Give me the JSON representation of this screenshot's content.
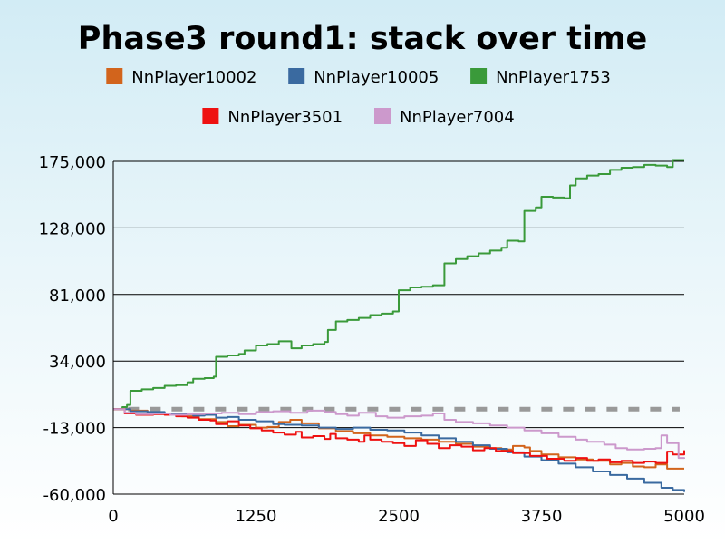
{
  "chart_data": {
    "type": "line",
    "title": "Phase3 round1: stack over time",
    "xlabel": "",
    "ylabel": "",
    "xlim": [
      0,
      5000
    ],
    "ylim": [
      -60000,
      175000
    ],
    "x_ticks": [
      "0",
      "1250",
      "2500",
      "3750",
      "5000"
    ],
    "y_ticks": [
      "-60,000",
      "-13,000",
      "34,000",
      "81,000",
      "128,000",
      "175,000"
    ],
    "grid": "horizontal",
    "legend_position": "top",
    "reference_line": {
      "y": 0,
      "style": "dashed",
      "color": "#999999"
    },
    "series": [
      {
        "name": "NnPlayer10002",
        "color": "#d2641c",
        "points": [
          [
            0,
            0
          ],
          [
            150,
            -1000
          ],
          [
            300,
            -2500
          ],
          [
            450,
            -3500
          ],
          [
            600,
            -5000
          ],
          [
            750,
            -7000
          ],
          [
            900,
            -9000
          ],
          [
            1000,
            -12000
          ],
          [
            1100,
            -11000
          ],
          [
            1250,
            -13000
          ],
          [
            1350,
            -12500
          ],
          [
            1450,
            -9000
          ],
          [
            1550,
            -7500
          ],
          [
            1650,
            -10000
          ],
          [
            1800,
            -13500
          ],
          [
            1950,
            -15500
          ],
          [
            2100,
            -17000
          ],
          [
            2250,
            -18500
          ],
          [
            2400,
            -19500
          ],
          [
            2550,
            -20500
          ],
          [
            2700,
            -21500
          ],
          [
            2850,
            -23000
          ],
          [
            3000,
            -24500
          ],
          [
            3150,
            -26500
          ],
          [
            3300,
            -27500
          ],
          [
            3400,
            -28500
          ],
          [
            3500,
            -26000
          ],
          [
            3600,
            -27000
          ],
          [
            3650,
            -29500
          ],
          [
            3750,
            -32000
          ],
          [
            3900,
            -34000
          ],
          [
            4050,
            -35500
          ],
          [
            4200,
            -36500
          ],
          [
            4350,
            -39000
          ],
          [
            4450,
            -38000
          ],
          [
            4550,
            -40500
          ],
          [
            4650,
            -41000
          ],
          [
            4750,
            -39000
          ],
          [
            4850,
            -42000
          ],
          [
            5000,
            -42000
          ]
        ]
      },
      {
        "name": "NnPlayer10005",
        "color": "#3a6aa0",
        "points": [
          [
            0,
            0
          ],
          [
            150,
            -1500
          ],
          [
            300,
            -2000
          ],
          [
            450,
            -3000
          ],
          [
            600,
            -3500
          ],
          [
            700,
            -4500
          ],
          [
            800,
            -4000
          ],
          [
            900,
            -6000
          ],
          [
            1000,
            -5500
          ],
          [
            1100,
            -7500
          ],
          [
            1250,
            -8500
          ],
          [
            1400,
            -10500
          ],
          [
            1500,
            -11000
          ],
          [
            1650,
            -11500
          ],
          [
            1800,
            -13000
          ],
          [
            1950,
            -14000
          ],
          [
            2100,
            -13000
          ],
          [
            2250,
            -14500
          ],
          [
            2400,
            -15000
          ],
          [
            2550,
            -16500
          ],
          [
            2700,
            -18500
          ],
          [
            2850,
            -20500
          ],
          [
            3000,
            -23000
          ],
          [
            3150,
            -25500
          ],
          [
            3300,
            -28000
          ],
          [
            3450,
            -30500
          ],
          [
            3600,
            -33500
          ],
          [
            3750,
            -36000
          ],
          [
            3900,
            -38500
          ],
          [
            4050,
            -41000
          ],
          [
            4200,
            -44000
          ],
          [
            4350,
            -46500
          ],
          [
            4500,
            -49000
          ],
          [
            4650,
            -52000
          ],
          [
            4800,
            -55500
          ],
          [
            4900,
            -57000
          ],
          [
            5000,
            -58500
          ]
        ]
      },
      {
        "name": "NnPlayer1753",
        "color": "#3a9a3a",
        "points": [
          [
            0,
            0
          ],
          [
            80,
            1500
          ],
          [
            120,
            3000
          ],
          [
            150,
            13000
          ],
          [
            250,
            14000
          ],
          [
            350,
            15000
          ],
          [
            450,
            16500
          ],
          [
            550,
            17000
          ],
          [
            650,
            19000
          ],
          [
            700,
            21500
          ],
          [
            800,
            22000
          ],
          [
            880,
            23000
          ],
          [
            900,
            37000
          ],
          [
            1000,
            38000
          ],
          [
            1100,
            39000
          ],
          [
            1150,
            41500
          ],
          [
            1250,
            45000
          ],
          [
            1350,
            46000
          ],
          [
            1450,
            48000
          ],
          [
            1560,
            43000
          ],
          [
            1650,
            45000
          ],
          [
            1750,
            46000
          ],
          [
            1850,
            47500
          ],
          [
            1880,
            56000
          ],
          [
            1950,
            62000
          ],
          [
            2050,
            63000
          ],
          [
            2150,
            64500
          ],
          [
            2250,
            66500
          ],
          [
            2350,
            67500
          ],
          [
            2450,
            69000
          ],
          [
            2500,
            84000
          ],
          [
            2600,
            86000
          ],
          [
            2700,
            86500
          ],
          [
            2800,
            87500
          ],
          [
            2900,
            88500
          ],
          [
            2900,
            103000
          ],
          [
            3000,
            106000
          ],
          [
            3100,
            108000
          ],
          [
            3200,
            110000
          ],
          [
            3300,
            112000
          ],
          [
            3400,
            114000
          ],
          [
            3450,
            119000
          ],
          [
            3550,
            118500
          ],
          [
            3600,
            140000
          ],
          [
            3700,
            142500
          ],
          [
            3750,
            150000
          ],
          [
            3850,
            149500
          ],
          [
            3950,
            149000
          ],
          [
            4000,
            158000
          ],
          [
            4050,
            163000
          ],
          [
            4150,
            165000
          ],
          [
            4250,
            166000
          ],
          [
            4350,
            169000
          ],
          [
            4450,
            170500
          ],
          [
            4550,
            171000
          ],
          [
            4650,
            172500
          ],
          [
            4750,
            172000
          ],
          [
            4850,
            171000
          ],
          [
            4900,
            176000
          ],
          [
            5000,
            176000
          ]
        ]
      },
      {
        "name": "NnPlayer3501",
        "color": "#ee1111",
        "points": [
          [
            0,
            0
          ],
          [
            100,
            -3000
          ],
          [
            200,
            -4000
          ],
          [
            350,
            -3500
          ],
          [
            450,
            -4000
          ],
          [
            550,
            -5000
          ],
          [
            650,
            -6000
          ],
          [
            750,
            -7500
          ],
          [
            850,
            -8000
          ],
          [
            900,
            -10500
          ],
          [
            1000,
            -8500
          ],
          [
            1100,
            -11500
          ],
          [
            1200,
            -13500
          ],
          [
            1300,
            -15000
          ],
          [
            1400,
            -16500
          ],
          [
            1500,
            -18000
          ],
          [
            1600,
            -16000
          ],
          [
            1650,
            -20000
          ],
          [
            1750,
            -19000
          ],
          [
            1850,
            -21000
          ],
          [
            1900,
            -17500
          ],
          [
            1950,
            -20500
          ],
          [
            2050,
            -21500
          ],
          [
            2150,
            -23000
          ],
          [
            2200,
            -18500
          ],
          [
            2250,
            -21500
          ],
          [
            2350,
            -23000
          ],
          [
            2450,
            -24000
          ],
          [
            2550,
            -26000
          ],
          [
            2650,
            -22000
          ],
          [
            2750,
            -24500
          ],
          [
            2850,
            -27500
          ],
          [
            2950,
            -25500
          ],
          [
            3050,
            -26500
          ],
          [
            3150,
            -29000
          ],
          [
            3250,
            -27500
          ],
          [
            3350,
            -29500
          ],
          [
            3500,
            -31000
          ],
          [
            3650,
            -33000
          ],
          [
            3800,
            -35000
          ],
          [
            3950,
            -36500
          ],
          [
            4050,
            -34500
          ],
          [
            4150,
            -36500
          ],
          [
            4250,
            -35500
          ],
          [
            4350,
            -37500
          ],
          [
            4450,
            -36500
          ],
          [
            4550,
            -38000
          ],
          [
            4650,
            -37000
          ],
          [
            4750,
            -38000
          ],
          [
            4850,
            -30000
          ],
          [
            4900,
            -32000
          ],
          [
            5000,
            -29000
          ]
        ]
      },
      {
        "name": "NnPlayer7004",
        "color": "#cc99cc",
        "points": [
          [
            0,
            0
          ],
          [
            100,
            -2500
          ],
          [
            200,
            -3500
          ],
          [
            350,
            -3000
          ],
          [
            500,
            -4000
          ],
          [
            650,
            -3500
          ],
          [
            800,
            -3000
          ],
          [
            950,
            -2500
          ],
          [
            1100,
            -3500
          ],
          [
            1250,
            -2000
          ],
          [
            1400,
            -1500
          ],
          [
            1550,
            -2500
          ],
          [
            1700,
            -1000
          ],
          [
            1850,
            -2000
          ],
          [
            1950,
            -3500
          ],
          [
            2050,
            -4500
          ],
          [
            2150,
            -2500
          ],
          [
            2300,
            -5000
          ],
          [
            2400,
            -6000
          ],
          [
            2550,
            -5000
          ],
          [
            2700,
            -4500
          ],
          [
            2800,
            -3000
          ],
          [
            2900,
            -7500
          ],
          [
            3000,
            -9000
          ],
          [
            3150,
            -10000
          ],
          [
            3300,
            -11500
          ],
          [
            3450,
            -13000
          ],
          [
            3600,
            -15000
          ],
          [
            3750,
            -17000
          ],
          [
            3900,
            -19500
          ],
          [
            4050,
            -21500
          ],
          [
            4150,
            -23000
          ],
          [
            4300,
            -25000
          ],
          [
            4400,
            -27500
          ],
          [
            4500,
            -28500
          ],
          [
            4650,
            -28000
          ],
          [
            4750,
            -27500
          ],
          [
            4800,
            -18500
          ],
          [
            4850,
            -24000
          ],
          [
            4950,
            -34500
          ],
          [
            5000,
            -35000
          ]
        ]
      }
    ]
  }
}
